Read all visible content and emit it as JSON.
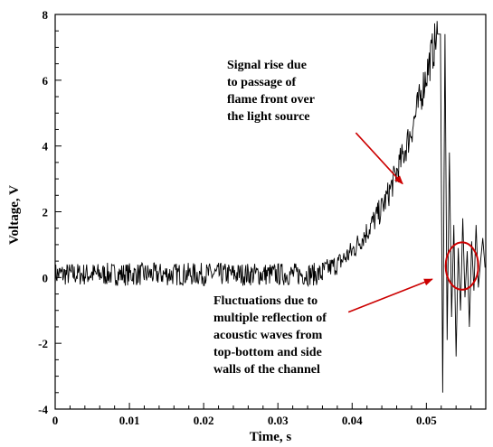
{
  "chart_data": {
    "type": "line",
    "xlabel": "Time, s",
    "ylabel": "Voltage, V",
    "xlim": [
      0,
      0.058
    ],
    "ylim": [
      -4,
      8
    ],
    "x_ticks": [
      "0",
      "0.01",
      "0.02",
      "0.03",
      "0.04",
      "0.05"
    ],
    "y_ticks": [
      "-4",
      "-2",
      "0",
      "2",
      "4",
      "6",
      "8"
    ],
    "grid": false,
    "series": [
      {
        "name": "",
        "color": "#000000",
        "baseline_noise": {
          "t_start": 0.0,
          "t_end": 0.036,
          "mean": 0.1,
          "amplitude": 0.35
        },
        "envelope_x": [
          0.036,
          0.038,
          0.04,
          0.042,
          0.044,
          0.045,
          0.046,
          0.047,
          0.048,
          0.049,
          0.05,
          0.051,
          0.0515
        ],
        "envelope_y": [
          0.2,
          0.4,
          0.8,
          1.4,
          2.1,
          2.6,
          3.2,
          3.8,
          4.5,
          5.3,
          6.2,
          7.0,
          7.4
        ],
        "oscillation_x": [
          0.0515,
          0.0519,
          0.0522,
          0.0525,
          0.0528,
          0.0531,
          0.0534,
          0.0537,
          0.054,
          0.0543,
          0.0546,
          0.0549,
          0.0552,
          0.0555,
          0.0558,
          0.0561,
          0.0564,
          0.0567,
          0.057,
          0.0573,
          0.0576,
          0.0579
        ],
        "oscillation_y": [
          7.4,
          7.4,
          -3.5,
          7.4,
          -1.9,
          3.8,
          -1.2,
          1.6,
          -2.4,
          0.9,
          -1.0,
          1.8,
          -0.6,
          0.8,
          -1.5,
          1.1,
          -0.4,
          1.6,
          -0.3,
          0.5,
          1.2,
          0.3
        ]
      }
    ],
    "annotations": [
      {
        "text_lines": [
          "Signal rise due",
          "to passage of",
          "flame front over",
          "the light source"
        ],
        "arrow_from": [
          0.0405,
          4.4
        ],
        "arrow_to": [
          0.0468,
          2.85
        ]
      },
      {
        "text_lines": [
          "Fluctuations due to",
          "multiple reflection of",
          "acoustic waves from",
          "top-bottom and side",
          "walls of the channel"
        ],
        "arrow_from": [
          0.0395,
          -1.05
        ],
        "arrow_to": [
          0.0508,
          -0.05
        ]
      }
    ],
    "highlight_circle": {
      "center": [
        0.0548,
        0.35
      ],
      "radius_x": 0.0022,
      "radius_y": 0.72,
      "color": "#cc0000"
    },
    "arrow_color": "#cc0000"
  }
}
